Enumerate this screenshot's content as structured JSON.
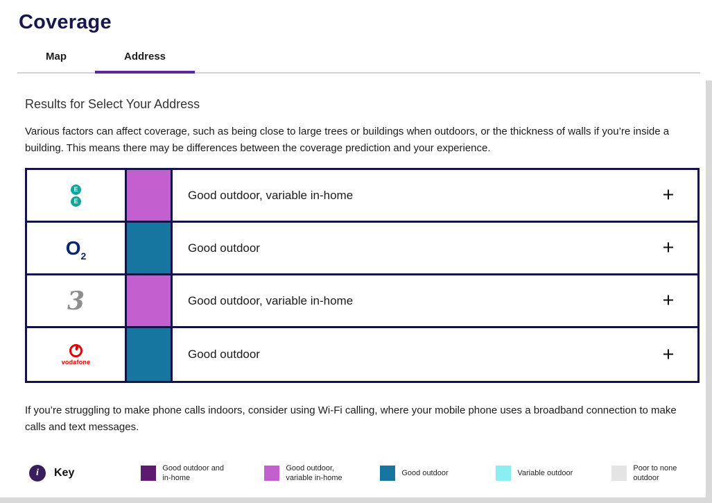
{
  "page": {
    "title": "Coverage"
  },
  "tabs": [
    {
      "label": "Map",
      "active": false
    },
    {
      "label": "Address",
      "active": true
    }
  ],
  "results": {
    "heading": "Results for Select Your Address",
    "intro": "Various factors can affect coverage, such as being close to large trees or buildings when outdoors, or the thickness of walls if you’re inside a building. This means there may be differences between the coverage prediction and your experience.",
    "footer_note": "If you’re struggling to make phone calls indoors, consider using Wi-Fi calling, where your mobile phone uses a broadband connection to make calls and text messages.",
    "expand_symbol": "+"
  },
  "operators": [
    {
      "name": "EE",
      "logo": {
        "type": "ee",
        "letters": [
          "E",
          "E"
        ],
        "color": "#14a49b"
      },
      "status": "Good outdoor, variable in-home",
      "swatch_color": "#c45fd0"
    },
    {
      "name": "O2",
      "logo": {
        "type": "o2",
        "text": "O",
        "sub": "2",
        "color": "#0b2472"
      },
      "status": "Good outdoor",
      "swatch_color": "#16769f"
    },
    {
      "name": "Three",
      "logo": {
        "type": "three",
        "text": "3",
        "color": "#8e8e8e"
      },
      "status": "Good outdoor, variable in-home",
      "swatch_color": "#c45fd0"
    },
    {
      "name": "Vodafone",
      "logo": {
        "type": "vodafone",
        "text": "vodafone",
        "color": "#e60000"
      },
      "status": "Good outdoor",
      "swatch_color": "#16769f"
    }
  ],
  "key": {
    "label": "Key",
    "info_glyph": "i",
    "items": [
      {
        "label": "Good outdoor and\nin-home",
        "color": "#5e1a6e"
      },
      {
        "label": "Good outdoor,\nvariable in-home",
        "color": "#c45fd0"
      },
      {
        "label": "Good outdoor",
        "color": "#16769f"
      },
      {
        "label": "Variable outdoor",
        "color": "#8aeef2"
      },
      {
        "label": "Poor to none\noutdoor",
        "color": "#e4e4e4"
      }
    ]
  },
  "colors": {
    "title_navy": "#17174d",
    "accent_purple": "#5e259e",
    "table_border": "#131347",
    "good_outdoor_variable": "#c45fd0",
    "good_outdoor": "#16769f"
  }
}
